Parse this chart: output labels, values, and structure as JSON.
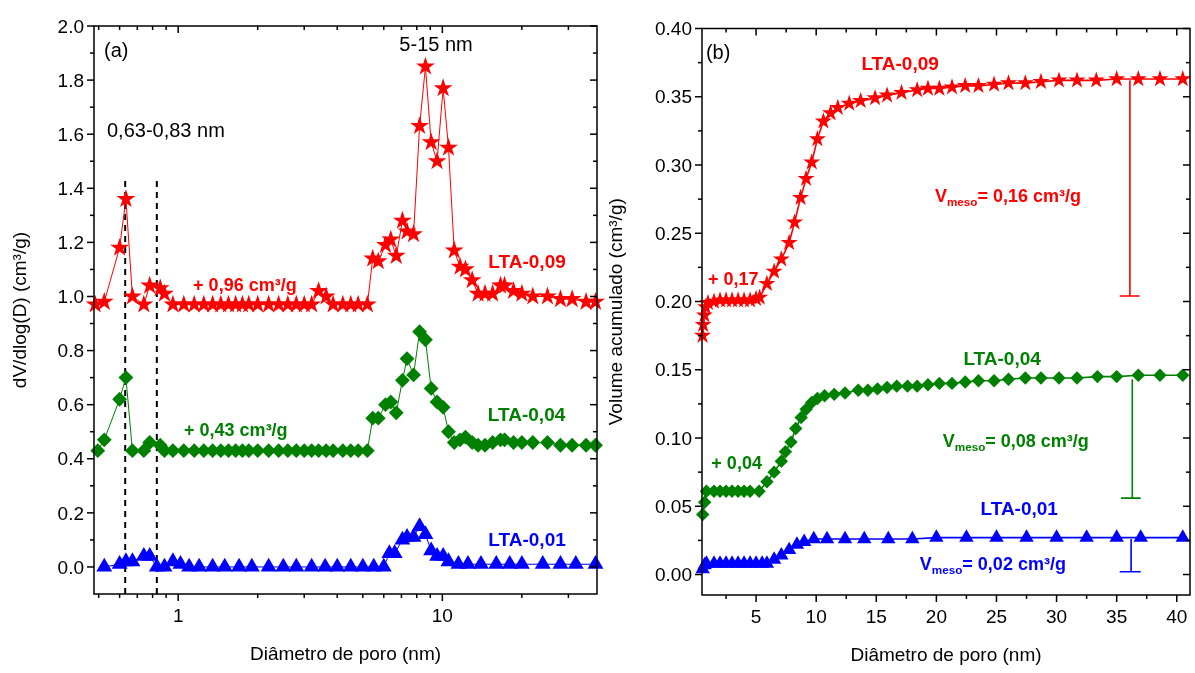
{
  "chart_data": [
    {
      "type": "line",
      "xlabel": "Diâmetro de poro (nm)",
      "ylabel": "dV/dlog(D) (cm³/g)",
      "log": "x",
      "grid": false,
      "xlim": [
        0.48,
        38.5
      ],
      "xticks": [
        {
          "value": 0.5,
          "label": null
        },
        {
          "value": 0.6,
          "label": null
        },
        {
          "value": 0.7,
          "label": null
        },
        {
          "value": 0.8,
          "label": null
        },
        {
          "value": 0.9,
          "label": null
        },
        1,
        {
          "value": 2,
          "label": null
        },
        {
          "value": 3,
          "label": null
        },
        {
          "value": 4,
          "label": null
        },
        {
          "value": 5,
          "label": null
        },
        {
          "value": 6,
          "label": null
        },
        {
          "value": 7,
          "label": null
        },
        {
          "value": 8,
          "label": null
        },
        {
          "value": 9,
          "label": null
        },
        10,
        {
          "value": 20,
          "label": null
        },
        {
          "value": 30,
          "label": null
        }
      ],
      "ylim": [
        -0.1,
        2.0
      ],
      "yticks": [
        {
          "value": 0,
          "label": "0.0"
        },
        {
          "value": 0.1,
          "label": null
        },
        {
          "value": 0.2,
          "label": "0.2"
        },
        {
          "value": 0.3,
          "label": null
        },
        {
          "value": 0.4,
          "label": "0.4"
        },
        {
          "value": 0.5,
          "label": null
        },
        {
          "value": 0.6,
          "label": "0.6"
        },
        {
          "value": 0.7,
          "label": null
        },
        {
          "value": 0.8,
          "label": "0.8"
        },
        {
          "value": 0.9,
          "label": null
        },
        {
          "value": 1,
          "label": "1.0"
        },
        {
          "value": 1.1,
          "label": null
        },
        {
          "value": 1.2,
          "label": "1.2"
        },
        {
          "value": 1.3,
          "label": null
        },
        {
          "value": 1.4,
          "label": "1.4"
        },
        {
          "value": 1.5,
          "label": null
        },
        {
          "value": 1.6,
          "label": "1.6"
        },
        {
          "value": 1.7,
          "label": null
        },
        {
          "value": 1.8,
          "label": "1.8"
        },
        {
          "value": 1.9,
          "label": null
        },
        {
          "value": 2,
          "label": "2.0"
        }
      ],
      "ref_lines": [
        {
          "axis": "x",
          "value": 0.63,
          "color": "#000000",
          "line_style": "dashed"
        },
        {
          "axis": "x",
          "value": 0.83,
          "color": "#000000",
          "line_style": "dashed"
        }
      ],
      "annotations": [
        "(a)",
        "5-15 nm",
        "0,63-0,83 nm",
        "+ 0,96 cm³/g",
        "+ 0,43 cm³/g"
      ],
      "series": [
        {
          "name": "LTA-0,09",
          "color": "#ff0000",
          "marker": "star",
          "x": [
            0.485,
            0.525,
            0.6,
            0.634,
            0.671,
            0.741,
            0.78,
            0.855,
            0.887,
            0.955,
            1.05,
            1.15,
            1.25,
            1.35,
            1.45,
            1.55,
            1.65,
            1.75,
            1.85,
            2.0,
            2.2,
            2.4,
            2.6,
            2.8,
            3.0,
            3.2,
            3.4,
            3.63,
            3.86,
            4.2,
            4.5,
            4.8,
            5.2,
            5.45,
            5.72,
            6.09,
            6.38,
            6.69,
            7.06,
            7.35,
            7.78,
            8.2,
            8.63,
            9.07,
            9.55,
            10.07,
            10.55,
            11.09,
            11.67,
            12.23,
            12.97,
            13.65,
            14.5,
            15.5,
            16.6,
            17.2,
            18.6,
            20,
            22,
            25,
            28,
            31,
            35,
            38
          ],
          "values": [
            0.97,
            0.98,
            1.18,
            1.36,
            1.0,
            0.97,
            1.04,
            1.03,
            1.01,
            0.97,
            0.97,
            0.97,
            0.97,
            0.97,
            0.97,
            0.97,
            0.97,
            0.97,
            0.97,
            0.97,
            0.97,
            0.97,
            0.97,
            0.97,
            0.97,
            0.97,
            1.02,
            1.0,
            0.97,
            0.97,
            0.97,
            0.97,
            0.97,
            1.14,
            1.13,
            1.19,
            1.21,
            1.15,
            1.28,
            1.24,
            1.23,
            1.63,
            1.85,
            1.57,
            1.5,
            1.77,
            1.55,
            1.17,
            1.11,
            1.1,
            1.06,
            1.01,
            1.01,
            1.01,
            1.04,
            1.04,
            1.02,
            1.01,
            1.0,
            1.0,
            0.99,
            0.99,
            0.98,
            0.98
          ]
        },
        {
          "name": "LTA-0,04",
          "color": "#008000",
          "marker": "diamond",
          "x": [
            0.496,
            0.525,
            0.6,
            0.634,
            0.671,
            0.741,
            0.78,
            0.855,
            0.887,
            0.955,
            1.05,
            1.15,
            1.25,
            1.35,
            1.45,
            1.55,
            1.65,
            1.75,
            1.85,
            2.0,
            2.2,
            2.4,
            2.6,
            2.8,
            3.0,
            3.2,
            3.4,
            3.63,
            3.86,
            4.2,
            4.5,
            4.8,
            5.2,
            5.45,
            5.72,
            6.09,
            6.38,
            6.69,
            7.06,
            7.35,
            7.78,
            8.2,
            8.63,
            9.07,
            9.55,
            10.07,
            10.55,
            11.09,
            11.67,
            12.23,
            12.97,
            13.65,
            14.5,
            15.5,
            16.6,
            17.2,
            18.6,
            20,
            22,
            25,
            28,
            31,
            35,
            38
          ],
          "values": [
            0.43,
            0.47,
            0.62,
            0.7,
            0.43,
            0.43,
            0.46,
            0.45,
            0.43,
            0.43,
            0.43,
            0.43,
            0.43,
            0.43,
            0.43,
            0.43,
            0.43,
            0.43,
            0.43,
            0.43,
            0.43,
            0.43,
            0.43,
            0.43,
            0.43,
            0.43,
            0.43,
            0.43,
            0.43,
            0.43,
            0.43,
            0.43,
            0.43,
            0.55,
            0.55,
            0.6,
            0.61,
            0.57,
            0.69,
            0.77,
            0.71,
            0.87,
            0.84,
            0.66,
            0.61,
            0.59,
            0.5,
            0.46,
            0.47,
            0.48,
            0.46,
            0.45,
            0.45,
            0.46,
            0.47,
            0.47,
            0.46,
            0.46,
            0.46,
            0.46,
            0.45,
            0.45,
            0.45,
            0.45
          ]
        },
        {
          "name": "LTA-0,01",
          "color": "#0000ff",
          "marker": "triangle",
          "x": [
            0.525,
            0.6,
            0.634,
            0.671,
            0.741,
            0.78,
            0.83,
            0.887,
            0.955,
            1.02,
            1.1,
            1.2,
            1.35,
            1.5,
            1.7,
            1.9,
            2.2,
            2.5,
            2.8,
            3.2,
            3.6,
            4.0,
            4.5,
            5.0,
            5.5,
            6.0,
            6.3,
            6.6,
            7.06,
            7.35,
            7.78,
            8.2,
            8.63,
            9.07,
            9.55,
            10.07,
            10.55,
            11.5,
            12.5,
            14,
            16,
            18,
            20,
            24,
            28,
            32,
            38
          ],
          "values": [
            0.0,
            0.01,
            0.02,
            0.02,
            0.04,
            0.04,
            0.0,
            0.0,
            0.02,
            0.01,
            0.0,
            0.0,
            0.0,
            0.0,
            0.0,
            0.0,
            0.0,
            0.0,
            0.0,
            0.0,
            0.0,
            0.0,
            0.0,
            0.0,
            0.0,
            0.0,
            0.05,
            0.05,
            0.1,
            0.11,
            0.11,
            0.15,
            0.12,
            0.06,
            0.04,
            0.04,
            0.02,
            0.01,
            0.01,
            0.01,
            0.01,
            0.01,
            0.01,
            0.01,
            0.01,
            0.01,
            0.01
          ]
        }
      ]
    },
    {
      "type": "line",
      "xlabel": "Diâmetro de poro (nm)",
      "ylabel": "Volume acumulado (cm³/g)",
      "grid": false,
      "xlim": [
        0.5,
        41.1
      ],
      "xticks": [
        {
          "value": 2.5,
          "label": null
        },
        5,
        {
          "value": 7.5,
          "label": null
        },
        10,
        {
          "value": 12.5,
          "label": null
        },
        15,
        {
          "value": 17.5,
          "label": null
        },
        20,
        {
          "value": 22.5,
          "label": null
        },
        25,
        {
          "value": 27.5,
          "label": null
        },
        30,
        {
          "value": 32.5,
          "label": null
        },
        35,
        {
          "value": 37.5,
          "label": null
        },
        40
      ],
      "ylim": [
        -0.015,
        0.4
      ],
      "yticks": [
        {
          "value": 0,
          "label": "0.00"
        },
        {
          "value": 0.025,
          "label": null
        },
        {
          "value": 0.05,
          "label": "0.05"
        },
        {
          "value": 0.075,
          "label": null
        },
        {
          "value": 0.1,
          "label": "0.10"
        },
        {
          "value": 0.125,
          "label": null
        },
        {
          "value": 0.15,
          "label": "0.15"
        },
        {
          "value": 0.175,
          "label": null
        },
        {
          "value": 0.2,
          "label": "0.20"
        },
        {
          "value": 0.225,
          "label": null
        },
        {
          "value": 0.25,
          "label": "0.25"
        },
        {
          "value": 0.275,
          "label": null
        },
        {
          "value": 0.3,
          "label": "0.30"
        },
        {
          "value": 0.325,
          "label": null
        },
        {
          "value": 0.35,
          "label": "0.35"
        },
        {
          "value": 0.375,
          "label": null
        },
        {
          "value": 0.4,
          "label": "0.40"
        }
      ],
      "annotations": [
        "(b)",
        "+ 0,17",
        "V$_{meso}$= 0,16 cm³/g",
        "+ 0,04",
        "V$_{meso}$= 0,08 cm³/g",
        "V$_{meso}$= 0,02 cm³/g"
      ],
      "series": [
        {
          "name": "LTA-0,09",
          "color": "#ff0000",
          "marker": "star",
          "x": [
            0.55,
            0.6,
            0.7,
            0.8,
            1.0,
            1.5,
            2,
            2.5,
            3,
            3.5,
            4,
            4.5,
            5.0,
            5.3,
            5.9,
            6.5,
            7.1,
            7.75,
            8.2,
            8.7,
            9.16,
            9.63,
            10.1,
            10.6,
            11.2,
            11.8,
            12.75,
            13.7,
            14.9,
            15.9,
            17.1,
            18.4,
            19.3,
            20.25,
            21.3,
            22.4,
            23.5,
            24.8,
            26.0,
            27.4,
            28.7,
            30.2,
            31.7,
            33.3,
            35,
            36.8,
            38.6,
            40.5
          ],
          "values": [
            0.175,
            0.183,
            0.19,
            0.196,
            0.199,
            0.2,
            0.201,
            0.201,
            0.201,
            0.201,
            0.201,
            0.201,
            0.202,
            0.203,
            0.213,
            0.222,
            0.231,
            0.243,
            0.258,
            0.276,
            0.29,
            0.302,
            0.319,
            0.332,
            0.338,
            0.342,
            0.345,
            0.347,
            0.349,
            0.351,
            0.353,
            0.355,
            0.356,
            0.356,
            0.357,
            0.358,
            0.358,
            0.359,
            0.36,
            0.36,
            0.361,
            0.362,
            0.362,
            0.362,
            0.363,
            0.363,
            0.363,
            0.363
          ]
        },
        {
          "name": "LTA-0,04",
          "color": "#008000",
          "marker": "diamond",
          "x": [
            0.56,
            0.72,
            0.87,
            1.5,
            2,
            2.5,
            3,
            3.5,
            4,
            4.5,
            5.25,
            5.9,
            6.5,
            7.1,
            7.44,
            7.9,
            8.3,
            8.75,
            9.16,
            9.63,
            10.1,
            10.7,
            11.5,
            12.4,
            13.5,
            14.3,
            15.1,
            15.9,
            16.7,
            17.6,
            18.4,
            19.3,
            20.25,
            21.3,
            22.4,
            23.5,
            24.8,
            26,
            27.4,
            28.7,
            30.2,
            31.7,
            33.4,
            35,
            36.8,
            38.6,
            40.5
          ],
          "values": [
            0.044,
            0.053,
            0.061,
            0.061,
            0.061,
            0.061,
            0.061,
            0.061,
            0.061,
            0.061,
            0.061,
            0.068,
            0.075,
            0.083,
            0.09,
            0.097,
            0.107,
            0.115,
            0.121,
            0.126,
            0.129,
            0.131,
            0.132,
            0.133,
            0.135,
            0.135,
            0.136,
            0.137,
            0.138,
            0.138,
            0.138,
            0.139,
            0.14,
            0.14,
            0.141,
            0.142,
            0.142,
            0.143,
            0.144,
            0.144,
            0.144,
            0.144,
            0.145,
            0.145,
            0.146,
            0.146,
            0.146
          ]
        },
        {
          "name": "LTA-0,01",
          "color": "#0000ff",
          "marker": "triangle",
          "x": [
            0.56,
            0.72,
            0.87,
            1.5,
            2,
            2.5,
            3,
            3.5,
            4,
            4.5,
            5,
            5.5,
            5.9,
            6.5,
            7.1,
            7.75,
            8.4,
            9,
            9.8,
            10.9,
            12.4,
            14,
            16,
            18,
            20,
            22.5,
            25,
            27.5,
            30,
            32.5,
            35,
            37,
            40.5
          ],
          "values": [
            0.004,
            0.007,
            0.008,
            0.008,
            0.008,
            0.008,
            0.008,
            0.008,
            0.008,
            0.008,
            0.008,
            0.008,
            0.008,
            0.011,
            0.014,
            0.018,
            0.022,
            0.024,
            0.026,
            0.026,
            0.026,
            0.026,
            0.026,
            0.026,
            0.027,
            0.027,
            0.027,
            0.027,
            0.027,
            0.027,
            0.027,
            0.027,
            0.027
          ]
        },
        {
          "color": "#ff0000",
          "marker": "none",
          "x": [
            36.1,
            36.1,
            35.3,
            36.9
          ],
          "values": [
            0.362,
            0.204,
            0.204,
            0.204
          ]
        },
        {
          "color": "#008000",
          "marker": "none",
          "x": [
            36.3,
            36.3,
            35.4,
            37.0
          ],
          "values": [
            0.143,
            0.056,
            0.056,
            0.056
          ]
        },
        {
          "color": "#0000ff",
          "marker": "none",
          "x": [
            36.2,
            36.2,
            35.3,
            37.0
          ],
          "values": [
            0.026,
            0.002,
            0.002,
            0.002
          ]
        }
      ]
    }
  ]
}
